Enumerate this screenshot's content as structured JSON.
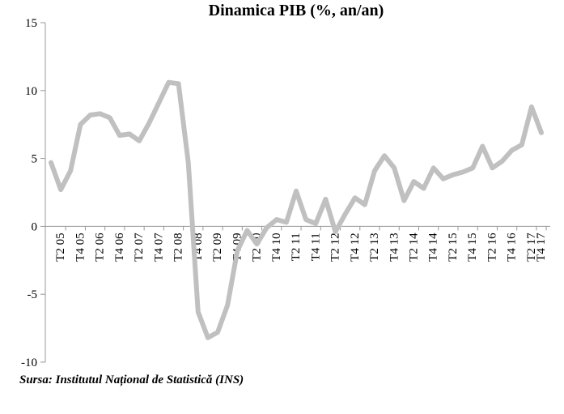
{
  "chart_data": {
    "type": "line",
    "title": "Dinamica PIB (%, an/an)",
    "source": "Sursa: Institutul Național de Statistică (INS)",
    "xlabel": "",
    "ylabel": "",
    "ylim": [
      -10,
      15
    ],
    "yticks": [
      "15",
      "10",
      "5",
      "0",
      "-5",
      "-10"
    ],
    "grid": false,
    "legend": "none",
    "line_color": "#c0c0c0",
    "tick_labels": [
      "T2 05",
      "T4 05",
      "T2 06",
      "T4 06",
      "T2 07",
      "T4 07",
      "T2 08",
      "T4 08",
      "T2 09",
      "T4 09",
      "T2 10",
      "T4 10",
      "T2 11",
      "T4 11",
      "T2 12",
      "T4 12",
      "T2 13",
      "T4 13",
      "T2 14",
      "T4 14",
      "T2 15",
      "T4 15",
      "T2 16",
      "T4 16",
      "T2 17",
      "T4 17"
    ],
    "series": [
      {
        "values": [
          4.7,
          2.7,
          4.1,
          7.5,
          8.2,
          8.3,
          8.0,
          6.7,
          6.8,
          6.3,
          7.6,
          9.1,
          10.6,
          10.5,
          4.7,
          -6.3,
          -8.2,
          -7.8,
          -5.8,
          -1.8,
          -0.3,
          -1.3,
          -0.1,
          0.5,
          0.3,
          2.6,
          0.5,
          0.2,
          2.0,
          -0.4,
          0.9,
          2.1,
          1.6,
          4.1,
          5.2,
          4.3,
          1.9,
          3.3,
          2.8,
          4.3,
          3.5,
          3.8,
          4.0,
          4.3,
          5.9,
          4.3,
          4.8,
          5.6,
          6.0,
          8.8,
          6.9
        ]
      }
    ]
  }
}
